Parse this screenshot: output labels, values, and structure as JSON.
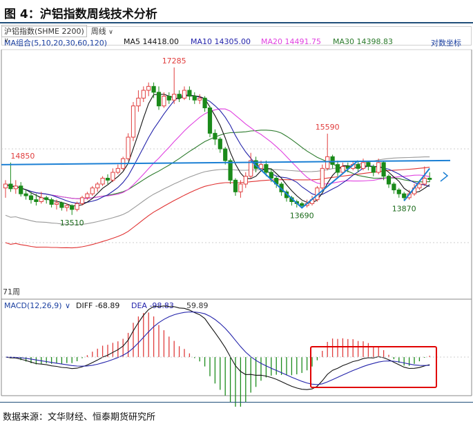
{
  "figure_title": "图 4：沪铝指数周线技术分析",
  "source_text": "数据来源：文华财经、恒泰期货研究所",
  "toolbar": {
    "instrument": "沪铝指数(SHME 2200)",
    "period": "周线",
    "indicator_group": "MA组合(5,10,20,30,60,120)",
    "ma5": "MA5 14418.00",
    "ma10": "MA10 14305.00",
    "ma20": "MA20 14491.75",
    "ma30": "MA30 14398.83",
    "log_scale": "对数坐标"
  },
  "macd_header": {
    "name": "MACD(12,26,9)",
    "diff": "DIFF -68.89",
    "dea": "DEA -98.83",
    "macd": "59.89"
  },
  "bottom_axis_label": "71周",
  "colors": {
    "up": "#e03c3c",
    "down": "#1a8a1a",
    "ma5": "#111111",
    "ma10": "#2222aa",
    "ma20": "#e040e0",
    "ma30": "#2b7a2b",
    "ma60": "#999999",
    "ma120": "#e03030",
    "trend": "#1a7fd4",
    "highlight_box": "#e00000"
  },
  "chart_data": {
    "type": "candlestick",
    "annotations": [
      {
        "label": "17285",
        "value": 17285
      },
      {
        "label": "15590",
        "value": 15590
      },
      {
        "label": "14850",
        "value": 14850
      },
      {
        "label": "13510",
        "value": 13510
      },
      {
        "label": "13690",
        "value": 13690
      },
      {
        "label": "13870",
        "value": 13870
      }
    ],
    "candles": [
      [
        14200,
        14300,
        13950,
        14400
      ],
      [
        14300,
        14180,
        14100,
        14850
      ],
      [
        14180,
        14250,
        14050,
        14400
      ],
      [
        14250,
        14050,
        13980,
        14350
      ],
      [
        14050,
        14000,
        13900,
        14150
      ],
      [
        14000,
        13900,
        13800,
        14100
      ],
      [
        13900,
        13850,
        13750,
        14050
      ],
      [
        13850,
        13950,
        13800,
        14100
      ],
      [
        13950,
        13900,
        13800,
        14000
      ],
      [
        13900,
        13780,
        13700,
        13950
      ],
      [
        13780,
        13820,
        13650,
        13900
      ],
      [
        13820,
        13700,
        13620,
        13850
      ],
      [
        13700,
        13750,
        13600,
        13800
      ],
      [
        13750,
        13650,
        13510,
        13780
      ],
      [
        13650,
        13800,
        13600,
        13850
      ],
      [
        13800,
        13950,
        13750,
        14000
      ],
      [
        13950,
        14050,
        13900,
        14100
      ],
      [
        14050,
        14200,
        14000,
        14250
      ],
      [
        14200,
        14300,
        14100,
        14350
      ],
      [
        14300,
        14450,
        14250,
        14500
      ],
      [
        14450,
        14400,
        14300,
        14550
      ],
      [
        14400,
        14600,
        14350,
        14700
      ],
      [
        14600,
        14700,
        14550,
        14800
      ],
      [
        14700,
        14950,
        14650,
        15000
      ],
      [
        14950,
        15500,
        14900,
        15600
      ],
      [
        15500,
        16300,
        15400,
        16400
      ],
      [
        16300,
        16500,
        16150,
        16700
      ],
      [
        16500,
        16700,
        16400,
        16800
      ],
      [
        16700,
        16800,
        16550,
        16900
      ],
      [
        16800,
        16650,
        16500,
        16900
      ],
      [
        16650,
        16300,
        16200,
        16800
      ],
      [
        16300,
        16550,
        16250,
        16650
      ],
      [
        16550,
        16450,
        16350,
        16650
      ],
      [
        16450,
        16600,
        16350,
        17285
      ],
      [
        16600,
        16500,
        16400,
        16700
      ],
      [
        16500,
        16700,
        16450,
        16800
      ],
      [
        16700,
        16550,
        16450,
        16800
      ],
      [
        16550,
        16450,
        16350,
        16650
      ],
      [
        16450,
        16500,
        16350,
        16600
      ],
      [
        16500,
        16250,
        16150,
        16550
      ],
      [
        16250,
        15600,
        15500,
        16300
      ],
      [
        15600,
        15450,
        15300,
        15700
      ],
      [
        15450,
        15200,
        15100,
        15500
      ],
      [
        15200,
        14900,
        14800,
        15250
      ],
      [
        14900,
        14400,
        14300,
        14950
      ],
      [
        14400,
        14100,
        14000,
        14450
      ],
      [
        14100,
        14300,
        13950,
        14400
      ],
      [
        14300,
        14500,
        14200,
        14600
      ],
      [
        14500,
        14900,
        14450,
        15100
      ],
      [
        14900,
        14700,
        14600,
        15000
      ],
      [
        14700,
        14800,
        14650,
        14900
      ],
      [
        14800,
        14600,
        14500,
        14900
      ],
      [
        14600,
        14450,
        14350,
        14700
      ],
      [
        14450,
        14300,
        14200,
        14500
      ],
      [
        14300,
        14100,
        14000,
        14350
      ],
      [
        14100,
        13950,
        13850,
        14150
      ],
      [
        13950,
        13850,
        13750,
        14000
      ],
      [
        13850,
        13800,
        13700,
        13900
      ],
      [
        13800,
        13750,
        13690,
        13850
      ],
      [
        13750,
        13800,
        13700,
        13900
      ],
      [
        13800,
        13900,
        13750,
        14000
      ],
      [
        13900,
        14200,
        13850,
        14250
      ],
      [
        14200,
        14700,
        14150,
        14800
      ],
      [
        14700,
        15000,
        14650,
        15590
      ],
      [
        15000,
        14800,
        14700,
        15050
      ],
      [
        14800,
        14600,
        14500,
        14900
      ],
      [
        14600,
        14750,
        14550,
        14850
      ],
      [
        14750,
        14700,
        14600,
        14850
      ],
      [
        14700,
        14800,
        14650,
        14900
      ],
      [
        14800,
        14700,
        14600,
        14900
      ],
      [
        14700,
        14850,
        14650,
        14950
      ],
      [
        14850,
        14750,
        14650,
        14900
      ],
      [
        14750,
        14600,
        14500,
        14800
      ],
      [
        14600,
        14850,
        14550,
        14950
      ],
      [
        14850,
        14500,
        14400,
        14900
      ],
      [
        14500,
        14300,
        14200,
        14550
      ],
      [
        14300,
        14150,
        14050,
        14350
      ],
      [
        14150,
        14050,
        13950,
        14200
      ],
      [
        14050,
        13950,
        13870,
        14100
      ],
      [
        13950,
        14050,
        13900,
        14150
      ],
      [
        14050,
        14200,
        14000,
        14300
      ],
      [
        14200,
        14300,
        14150,
        14400
      ],
      [
        14300,
        14450,
        14250,
        14750
      ],
      [
        14450,
        14418,
        14350,
        14600
      ]
    ],
    "macd_diff_last": -68.89,
    "macd_dea_last": -98.83,
    "macd_hist_last": 59.89
  }
}
